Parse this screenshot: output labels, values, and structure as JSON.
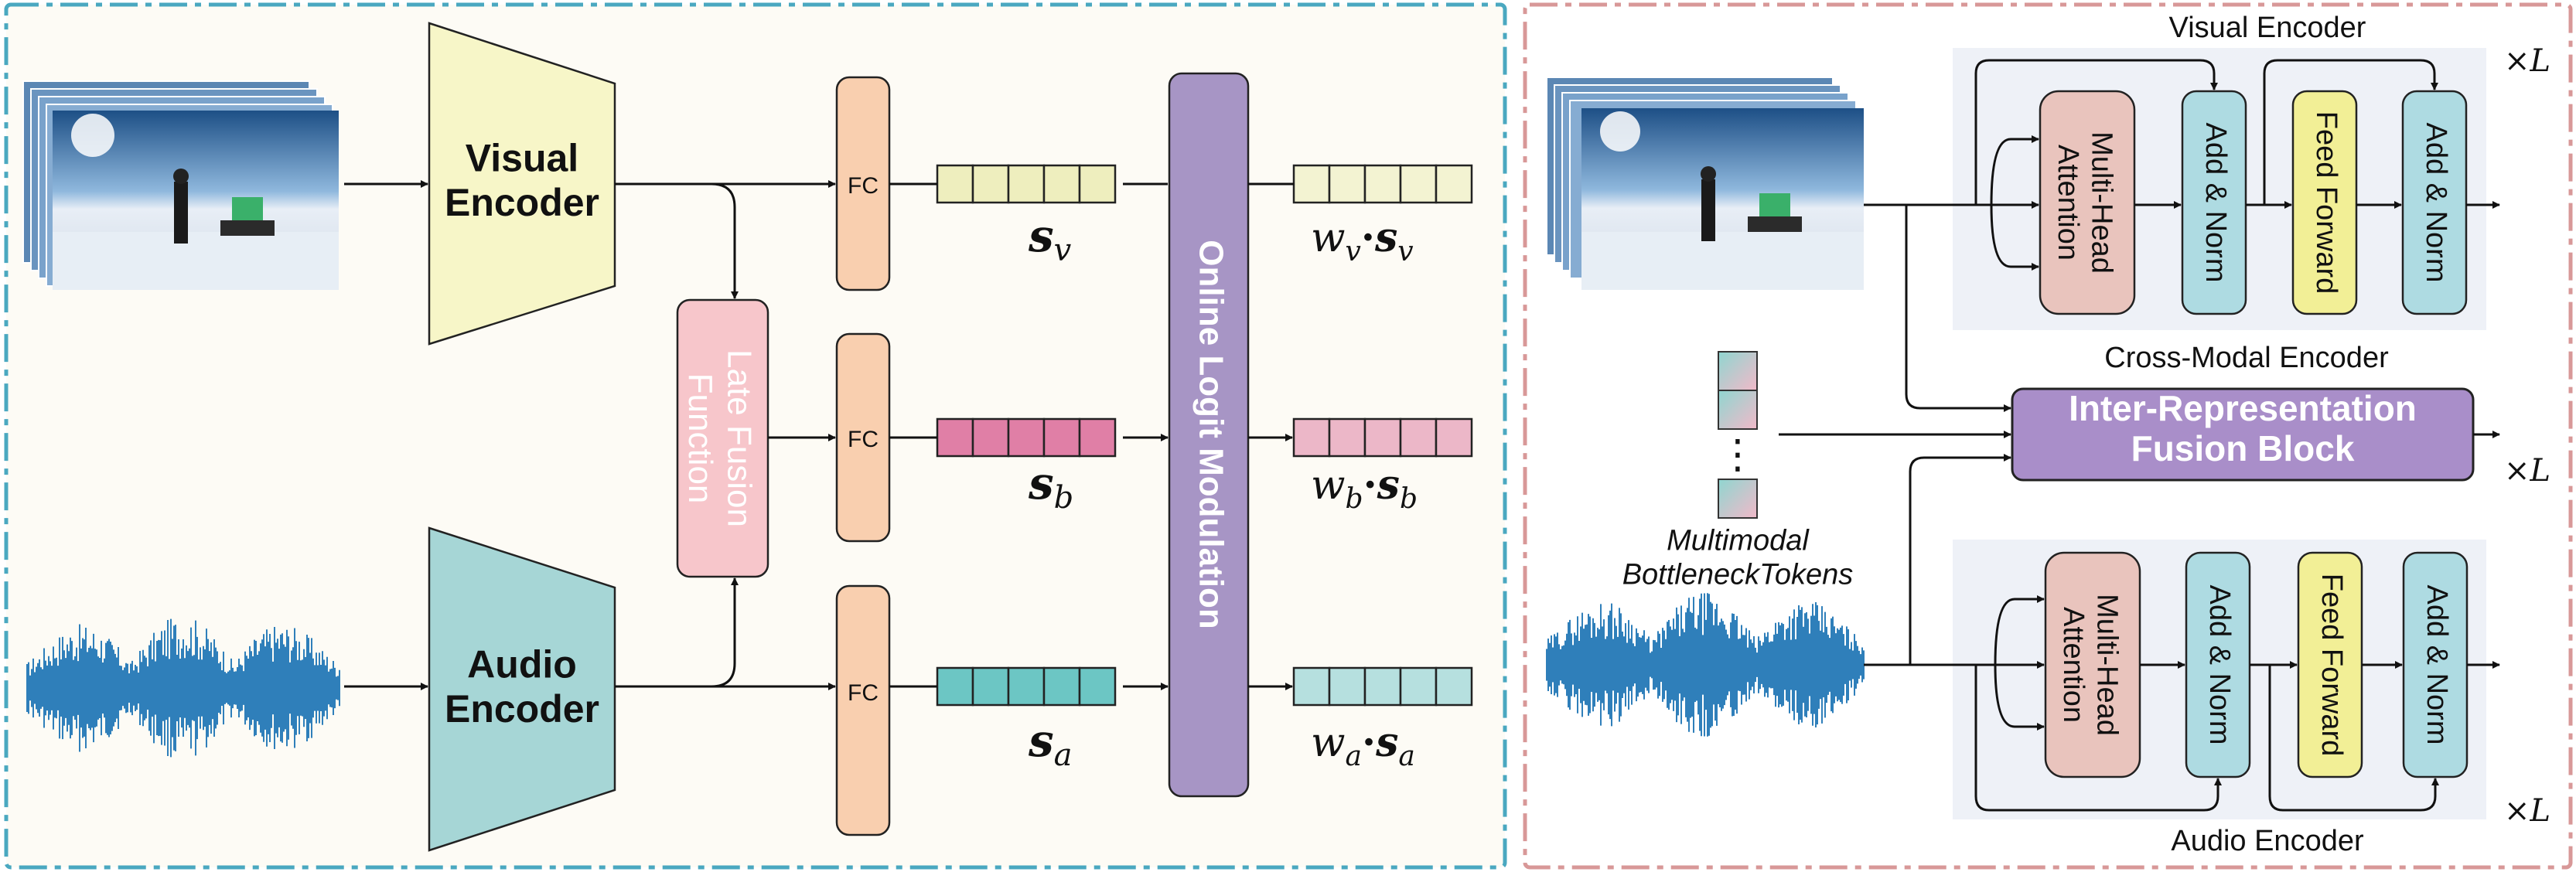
{
  "colors": {
    "left_panel_bg": "#fdfbf5",
    "left_border": "#4aa8c0",
    "right_border": "#d89898",
    "visual_encoder": "#f7f6c8",
    "audio_encoder": "#a6d6d6",
    "fc": "#f9cfaf",
    "late_fusion": "#f7c6cb",
    "online_logit": "#a795c5",
    "sv_cells": "#eeeebe",
    "sb_cells": "#e07fa6",
    "sa_cells": "#6cc6c4",
    "wv_cells": "#f3f3d2",
    "wb_cells": "#ecb7c8",
    "wa_cells": "#b6e0df",
    "mha": "#e9c4bd",
    "add_norm": "#aedbe2",
    "feed_forward": "#f2ef96",
    "fusion_block": "#a98ec9",
    "encoder_bg": "#eef1f7",
    "waveform": "#2f7fba"
  },
  "left": {
    "visual_encoder": "Visual\nEncoder",
    "audio_encoder": "Audio\nEncoder",
    "late_fusion": "Late Fusion\nFunction",
    "fc": "FC",
    "online_logit": "Online Logit Modulation",
    "s_v": {
      "base": "s",
      "sub": "v"
    },
    "s_b": {
      "base": "s",
      "sub": "b"
    },
    "s_a": {
      "base": "s",
      "sub": "a"
    },
    "w_v": {
      "w": "w",
      "sub": "v",
      "dot": "·",
      "s": "s"
    },
    "w_b": {
      "w": "w",
      "sub": "b",
      "dot": "·",
      "s": "s"
    },
    "w_a": {
      "w": "w",
      "sub": "a",
      "dot": "·",
      "s": "s"
    }
  },
  "right": {
    "visual_encoder_title": "Visual Encoder",
    "audio_encoder_title": "Audio Encoder",
    "cross_modal_title": "Cross-Modal Encoder",
    "mha": "Multi-Head\nAttention",
    "add_norm": "Add & Norm",
    "feed_forward": "Feed Forward",
    "fusion_block": "Inter-Representation\nFusion Block",
    "bottleneck_label": "Multimodal\nBottleneckTokens",
    "times_l": {
      "times": "×",
      "L": "L"
    },
    "vdots": "⋮"
  }
}
